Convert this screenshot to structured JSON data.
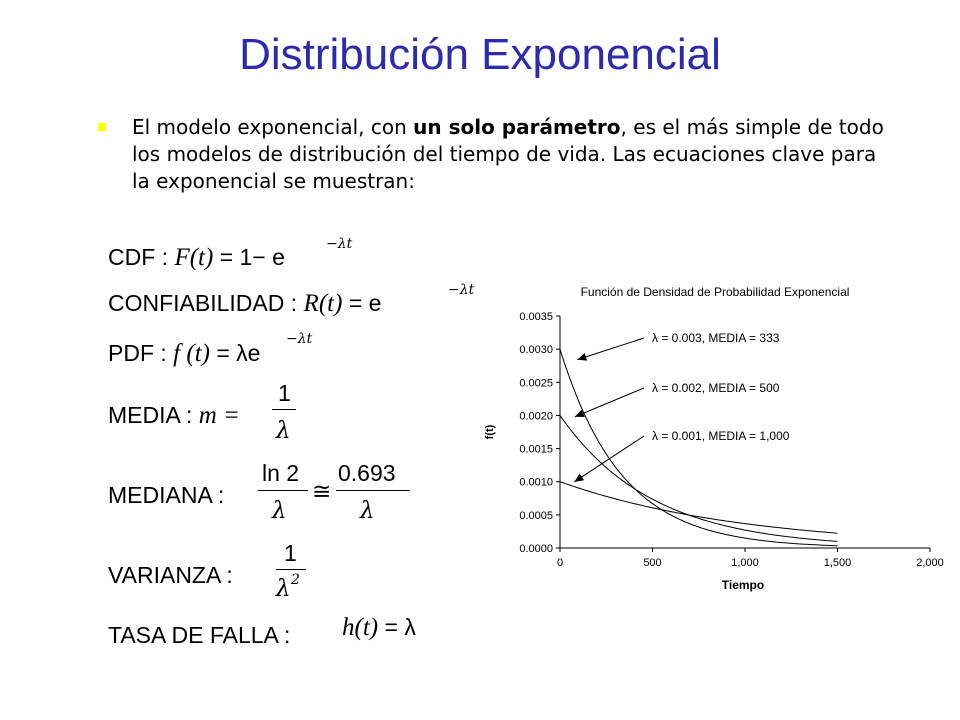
{
  "title": "Distribución Exponencial",
  "bullet": {
    "part1": "El modelo exponencial, con ",
    "bold": "un solo parámetro",
    "part2": ", es el más simple de todo los modelos de distribución del tiempo de vida. Las ecuaciones clave para la exponencial se muestran:"
  },
  "equations": {
    "cdf": {
      "label": "CDF :",
      "lhs": "F(t)",
      "eq": "= 1− e",
      "exp": "−λt"
    },
    "conf": {
      "label": "CONFIABILIDAD :",
      "lhs": "R(t)",
      "eq": "= e",
      "exp": "−λt"
    },
    "pdf": {
      "label": "PDF :",
      "lhs": "f (t)",
      "eq": "= λe",
      "exp": "−λt"
    },
    "media": {
      "label": "MEDIA :",
      "lhs": "m =",
      "num": "1",
      "den": "λ"
    },
    "mediana": {
      "label": "MEDIANA :",
      "num1": "ln 2",
      "den1": "λ",
      "approx": "≅",
      "num2": "0.693",
      "den2": "λ"
    },
    "varianza": {
      "label": "VARIANZA :",
      "num": "1",
      "den": "λ",
      "den_exp": "2"
    },
    "tasa": {
      "label": "TASA DE FALLA :",
      "lhs": "h(t)",
      "eq": "= λ"
    }
  },
  "colors": {
    "title": "#2b2bb0",
    "bullet": "#ffff00",
    "curve": "#000000"
  },
  "chart_data": {
    "type": "line",
    "title": "Función de Densidad de Probabilidad Exponencial",
    "xlabel": "Tiempo",
    "ylabel": "f(t)",
    "xlim": [
      0,
      2000
    ],
    "ylim": [
      0,
      0.0035
    ],
    "x_ticks": [
      "0",
      "500",
      "1,000",
      "1,500",
      "2,000"
    ],
    "y_ticks": [
      "0.0000",
      "0.0005",
      "0.0010",
      "0.0015",
      "0.0020",
      "0.0025",
      "0.0030",
      "0.0035"
    ],
    "x_domain": [
      0,
      1500
    ],
    "series": [
      {
        "lambda": 0.003,
        "name": "λ = 0.003, MEDIA = 333",
        "values_at": {
          "0": 0.003,
          "500": 0.00067,
          "1000": 0.00015,
          "1500": 3e-05
        }
      },
      {
        "lambda": 0.002,
        "name": "λ = 0.002, MEDIA = 500",
        "values_at": {
          "0": 0.002,
          "500": 0.00074,
          "1000": 0.00027,
          "1500": 0.0001
        }
      },
      {
        "lambda": 0.001,
        "name": "λ = 0.001, MEDIA = 1,000",
        "values_at": {
          "0": 0.001,
          "500": 0.00061,
          "1000": 0.00037,
          "1500": 0.00022
        }
      }
    ],
    "legend": "annotations with arrows, right"
  }
}
